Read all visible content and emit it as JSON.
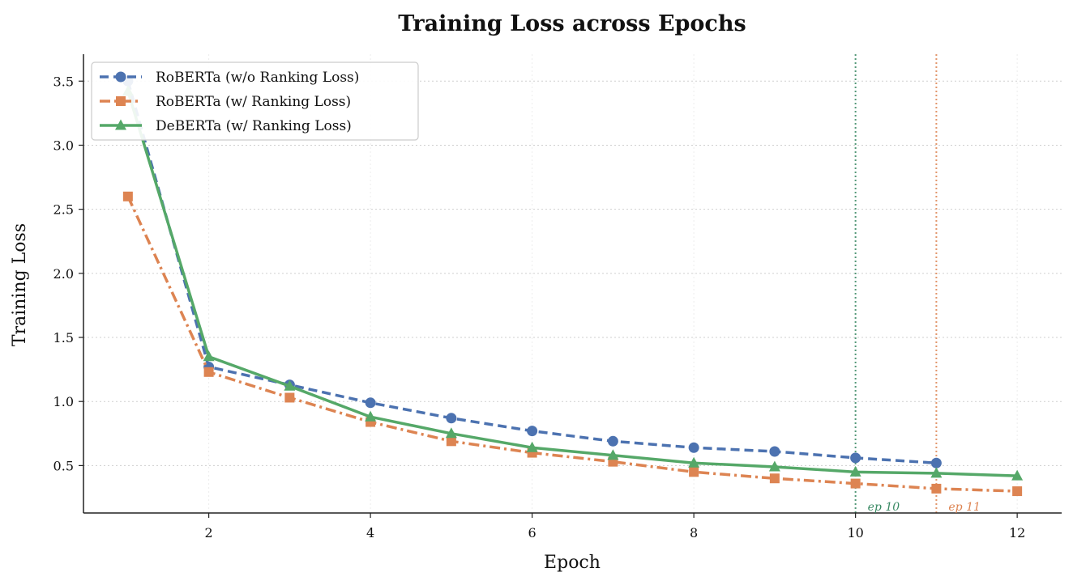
{
  "chart_data": {
    "type": "line",
    "title": "Training Loss across Epochs",
    "xlabel": "Epoch",
    "ylabel": "Training Loss",
    "xlim": [
      0.45,
      12.55
    ],
    "ylim": [
      0.13,
      3.71
    ],
    "xticks": [
      2,
      4,
      6,
      8,
      10,
      12
    ],
    "xtick_labels": [
      "2",
      "4",
      "6",
      "8",
      "10",
      "12"
    ],
    "yticks": [
      0.5,
      1.0,
      1.5,
      2.0,
      2.5,
      3.0,
      3.5
    ],
    "ytick_labels": [
      "0.5",
      "1.0",
      "1.5",
      "2.0",
      "2.5",
      "3.0",
      "3.5"
    ],
    "grid": "dotted",
    "legend_position": "top-left",
    "series": [
      {
        "name": "RoBERTa  (w/o Ranking Loss)",
        "color": "#4c72b0",
        "line_style": "dashed",
        "marker": "circle",
        "x": [
          1,
          2,
          3,
          4,
          5,
          6,
          7,
          8,
          9,
          10,
          11
        ],
        "values": [
          3.5,
          1.27,
          1.13,
          0.99,
          0.87,
          0.77,
          0.69,
          0.64,
          0.61,
          0.56,
          0.52
        ]
      },
      {
        "name": "RoBERTa  (w/ Ranking Loss)",
        "color": "#dd8452",
        "line_style": "dashdot",
        "marker": "square",
        "x": [
          1,
          2,
          3,
          4,
          5,
          6,
          7,
          8,
          9,
          10,
          11,
          12
        ],
        "values": [
          2.6,
          1.23,
          1.03,
          0.84,
          0.69,
          0.6,
          0.53,
          0.45,
          0.4,
          0.36,
          0.32,
          0.3
        ]
      },
      {
        "name": "DeBERTa  (w/ Ranking Loss)",
        "color": "#55a868",
        "line_style": "solid",
        "marker": "triangle",
        "x": [
          1,
          2,
          3,
          4,
          5,
          6,
          7,
          8,
          9,
          10,
          11,
          12
        ],
        "values": [
          3.42,
          1.35,
          1.12,
          0.88,
          0.75,
          0.64,
          0.58,
          0.52,
          0.49,
          0.45,
          0.44,
          0.42
        ]
      }
    ],
    "annotations": [
      {
        "x": 10,
        "text": "ep 10",
        "color": "#3a8a64"
      },
      {
        "x": 11,
        "text": "ep 11",
        "color": "#dd8452"
      }
    ]
  }
}
